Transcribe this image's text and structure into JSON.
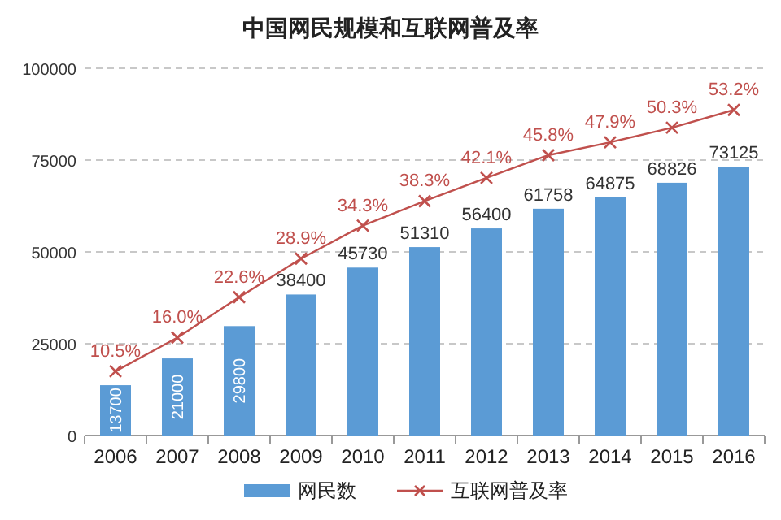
{
  "chart_data": {
    "type": "line",
    "title": "中国网民规模和互联网普及率",
    "categories": [
      "2006",
      "2007",
      "2008",
      "2009",
      "2010",
      "2011",
      "2012",
      "2013",
      "2014",
      "2015",
      "2016"
    ],
    "series": [
      {
        "name": "网民数",
        "type": "bar",
        "color": "#5b9bd5",
        "values": [
          13700,
          21000,
          29800,
          38400,
          45730,
          51310,
          56400,
          61758,
          64875,
          68826,
          73125
        ]
      },
      {
        "name": "互联网普及率",
        "axis": "y2",
        "color": "#c0504d",
        "values": [
          10.5,
          16.0,
          22.6,
          28.9,
          34.3,
          38.3,
          42.1,
          45.8,
          47.9,
          50.3,
          53.2
        ],
        "value_labels": [
          "10.5%",
          "16.0%",
          "22.6%",
          "28.9%",
          "34.3%",
          "38.3%",
          "42.1%",
          "45.8%",
          "47.9%",
          "50.3%",
          "53.2%"
        ]
      }
    ],
    "ylim": [
      0,
      100000
    ],
    "yticks": [
      0,
      25000,
      50000,
      75000,
      100000
    ],
    "y2lim": [
      0,
      60
    ],
    "grid": "y",
    "legend": "bottom",
    "data_labels": true,
    "marker": "cross",
    "line_style": "solid"
  }
}
